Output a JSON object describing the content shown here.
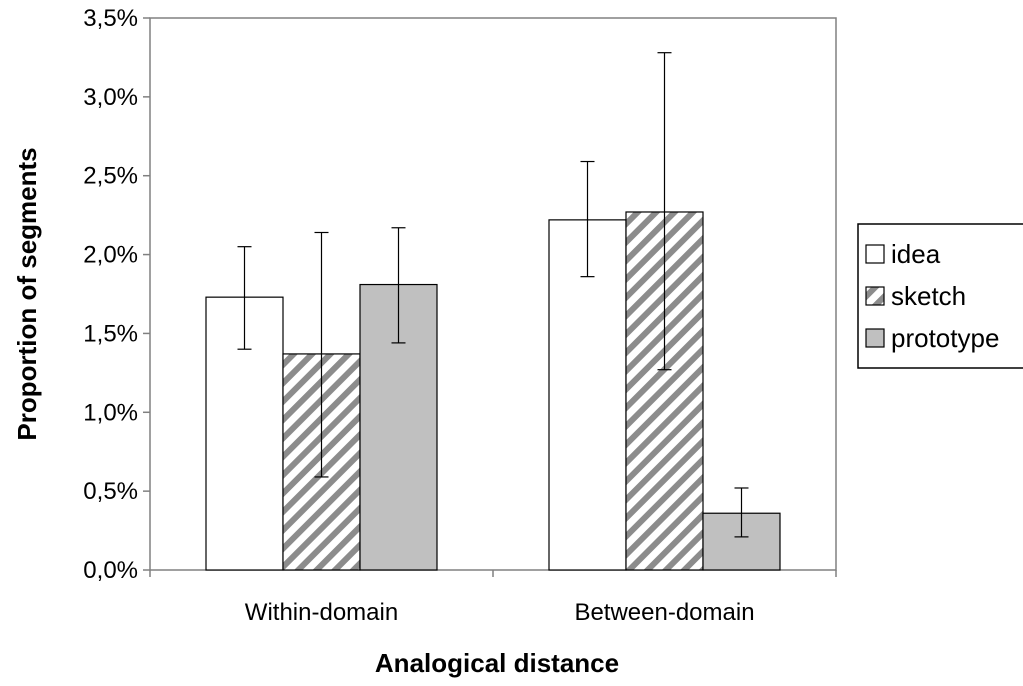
{
  "chart_data": {
    "type": "bar",
    "xlabel": "Analogical distance",
    "ylabel": "Proportion of segments",
    "categories": [
      "Within-domain",
      "Between-domain"
    ],
    "ylim": [
      0,
      3.5
    ],
    "yticks": [
      "0,0%",
      "0,5%",
      "1,0%",
      "1,5%",
      "2,0%",
      "2,5%",
      "3,0%",
      "3,5%"
    ],
    "ytick_values": [
      0,
      0.5,
      1.0,
      1.5,
      2.0,
      2.5,
      3.0,
      3.5
    ],
    "grid": false,
    "legend_position": "right",
    "series": [
      {
        "name": "idea",
        "values": [
          1.73,
          2.22
        ],
        "err_low": [
          1.4,
          1.86
        ],
        "err_high": [
          2.05,
          2.59
        ],
        "fill": "#ffffff",
        "pattern": "none"
      },
      {
        "name": "sketch",
        "values": [
          1.37,
          2.27
        ],
        "err_low": [
          0.59,
          1.27
        ],
        "err_high": [
          2.14,
          3.28
        ],
        "fill": "#ffffff",
        "pattern": "diagonal-hatch"
      },
      {
        "name": "prototype",
        "values": [
          1.81,
          0.36
        ],
        "err_low": [
          1.44,
          0.21
        ],
        "err_high": [
          2.17,
          0.52
        ],
        "fill": "#c0c0c0",
        "pattern": "none"
      }
    ],
    "colors": {
      "hatch": "#8c8c8c",
      "axis": "#808080",
      "bar_stroke": "#000000"
    }
  }
}
